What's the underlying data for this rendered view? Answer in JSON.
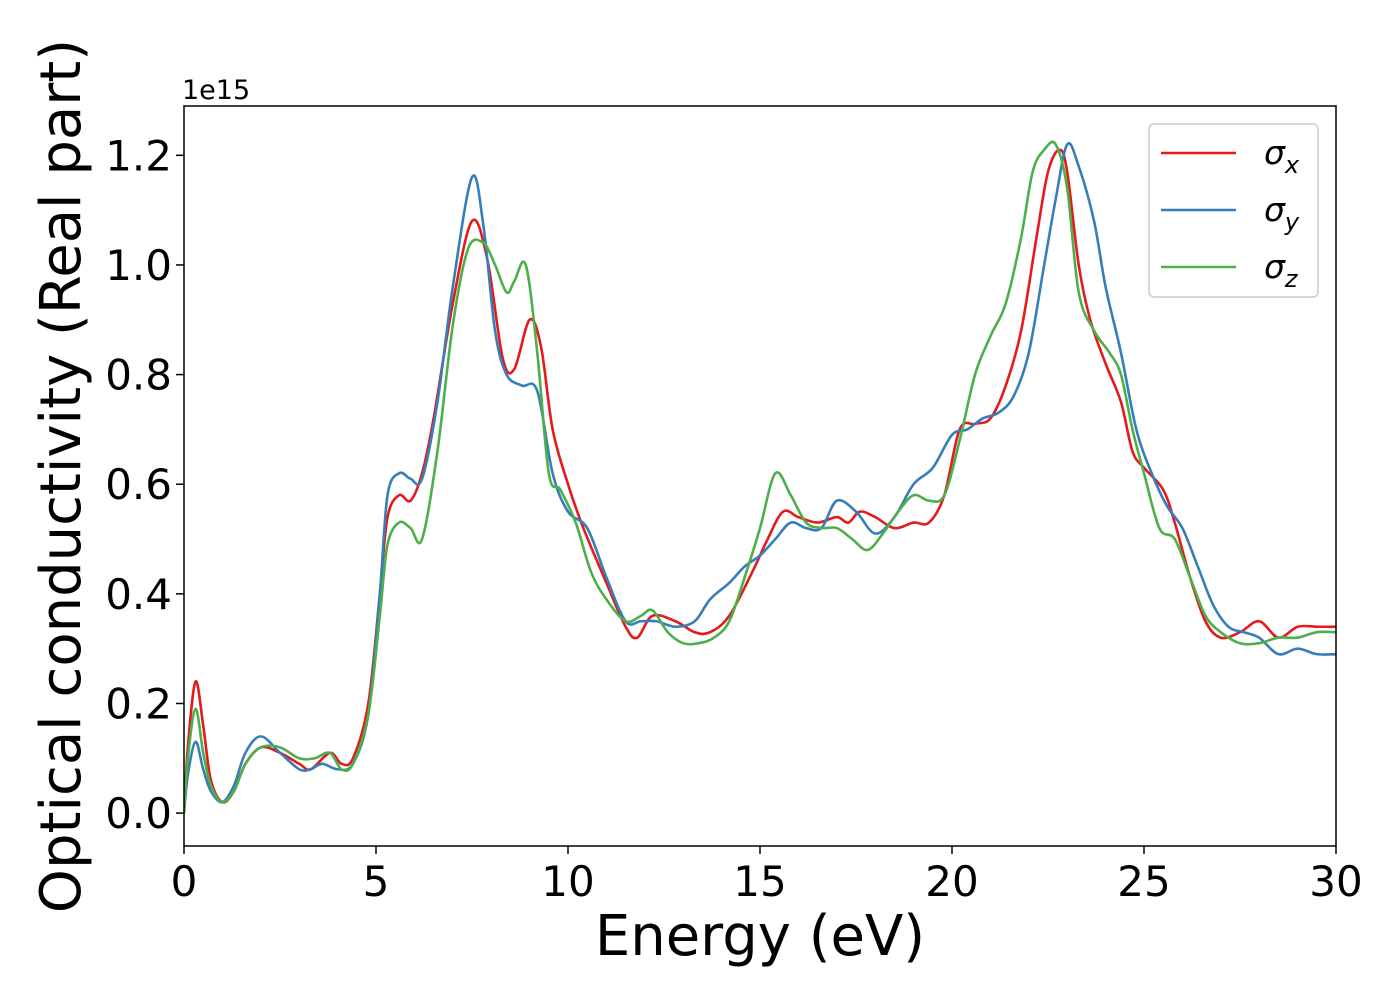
{
  "chart_data": {
    "type": "line",
    "xlabel": "Energy (eV)",
    "ylabel": "Optical conductivity (Real part)",
    "y_offset_label": "1e15",
    "xlim": [
      0,
      30
    ],
    "ylim": [
      -0.06,
      1.29
    ],
    "x_ticks": [
      0,
      5,
      10,
      15,
      20,
      25,
      30
    ],
    "x_tick_labels": [
      "0",
      "5",
      "10",
      "15",
      "20",
      "25",
      "30"
    ],
    "y_ticks": [
      0.0,
      0.2,
      0.4,
      0.6,
      0.8,
      1.0,
      1.2
    ],
    "y_tick_labels": [
      "0.0",
      "0.2",
      "0.4",
      "0.6",
      "0.8",
      "1.0",
      "1.2"
    ],
    "grid": false,
    "legend_position": "top-right",
    "series": [
      {
        "name": "σx",
        "legend_main": "σ",
        "legend_sub": "x",
        "color": "#e41a1c",
        "x": [
          0,
          0.1,
          0.3,
          0.5,
          0.7,
          1.0,
          1.3,
          1.6,
          2.0,
          2.5,
          3.0,
          3.3,
          3.8,
          4.1,
          4.4,
          4.8,
          5.1,
          5.3,
          5.6,
          5.9,
          6.2,
          6.5,
          7.0,
          7.5,
          7.9,
          8.3,
          8.6,
          9.0,
          9.3,
          9.6,
          10.0,
          10.4,
          11.0,
          11.5,
          11.8,
          12.2,
          12.8,
          13.3,
          13.7,
          14.2,
          14.8,
          15.2,
          15.6,
          16.0,
          16.5,
          17.0,
          17.3,
          17.6,
          18.0,
          18.5,
          19.0,
          19.4,
          19.8,
          20.2,
          20.6,
          21.0,
          21.4,
          21.8,
          22.2,
          22.5,
          22.8,
          23.0,
          23.3,
          23.6,
          24.0,
          24.4,
          24.7,
          25.0,
          25.5,
          25.8,
          26.2,
          26.6,
          27.0,
          27.5,
          28.0,
          28.5,
          29.0,
          29.5,
          30.0
        ],
        "values": [
          0.0,
          0.12,
          0.24,
          0.16,
          0.06,
          0.02,
          0.04,
          0.09,
          0.12,
          0.11,
          0.09,
          0.08,
          0.11,
          0.09,
          0.1,
          0.2,
          0.4,
          0.54,
          0.58,
          0.57,
          0.62,
          0.72,
          0.93,
          1.08,
          1.01,
          0.83,
          0.81,
          0.9,
          0.85,
          0.7,
          0.6,
          0.52,
          0.42,
          0.34,
          0.32,
          0.36,
          0.35,
          0.33,
          0.33,
          0.36,
          0.44,
          0.5,
          0.55,
          0.54,
          0.53,
          0.54,
          0.53,
          0.55,
          0.54,
          0.52,
          0.53,
          0.53,
          0.58,
          0.7,
          0.71,
          0.72,
          0.78,
          0.88,
          1.05,
          1.17,
          1.21,
          1.17,
          1.0,
          0.9,
          0.82,
          0.75,
          0.66,
          0.63,
          0.59,
          0.53,
          0.43,
          0.35,
          0.32,
          0.33,
          0.35,
          0.32,
          0.34,
          0.34,
          0.34
        ]
      },
      {
        "name": "σy",
        "legend_main": "σ",
        "legend_sub": "y",
        "color": "#377eb8",
        "x": [
          0,
          0.1,
          0.3,
          0.5,
          0.7,
          1.0,
          1.3,
          1.6,
          2.0,
          2.5,
          3.0,
          3.3,
          3.6,
          4.0,
          4.4,
          4.8,
          5.1,
          5.3,
          5.6,
          5.9,
          6.2,
          6.6,
          7.0,
          7.5,
          7.8,
          8.1,
          8.4,
          8.8,
          9.2,
          9.6,
          10.0,
          10.5,
          11.0,
          11.5,
          11.9,
          12.3,
          12.8,
          13.3,
          13.7,
          14.2,
          14.6,
          15.0,
          15.4,
          15.8,
          16.2,
          16.6,
          17.0,
          17.5,
          18.0,
          18.5,
          19.0,
          19.5,
          20.0,
          20.4,
          20.8,
          21.2,
          21.6,
          22.0,
          22.4,
          22.7,
          23.0,
          23.3,
          23.7,
          24.0,
          24.4,
          24.8,
          25.2,
          25.6,
          26.0,
          26.4,
          26.8,
          27.2,
          27.6,
          28.0,
          28.5,
          29.0,
          29.5,
          30.0
        ],
        "values": [
          0.0,
          0.07,
          0.13,
          0.08,
          0.04,
          0.02,
          0.05,
          0.11,
          0.14,
          0.11,
          0.08,
          0.08,
          0.09,
          0.08,
          0.09,
          0.18,
          0.4,
          0.58,
          0.62,
          0.61,
          0.61,
          0.75,
          0.96,
          1.16,
          1.07,
          0.88,
          0.8,
          0.78,
          0.77,
          0.62,
          0.55,
          0.52,
          0.43,
          0.35,
          0.35,
          0.35,
          0.34,
          0.35,
          0.39,
          0.42,
          0.45,
          0.47,
          0.5,
          0.53,
          0.52,
          0.52,
          0.57,
          0.55,
          0.51,
          0.54,
          0.6,
          0.63,
          0.69,
          0.7,
          0.72,
          0.73,
          0.76,
          0.84,
          1.0,
          1.12,
          1.22,
          1.18,
          1.08,
          0.96,
          0.84,
          0.7,
          0.62,
          0.56,
          0.52,
          0.45,
          0.38,
          0.34,
          0.33,
          0.32,
          0.29,
          0.3,
          0.29,
          0.29
        ]
      },
      {
        "name": "σz",
        "legend_main": "σ",
        "legend_sub": "z",
        "color": "#4daf4a",
        "x": [
          0,
          0.1,
          0.3,
          0.5,
          0.7,
          1.0,
          1.3,
          1.6,
          2.0,
          2.5,
          3.0,
          3.4,
          3.8,
          4.1,
          4.4,
          4.8,
          5.1,
          5.3,
          5.6,
          5.9,
          6.2,
          6.6,
          7.0,
          7.4,
          7.8,
          8.1,
          8.4,
          8.6,
          8.9,
          9.2,
          9.5,
          9.8,
          10.2,
          10.6,
          11.0,
          11.5,
          11.9,
          12.2,
          12.6,
          13.0,
          13.4,
          13.8,
          14.2,
          14.6,
          15.0,
          15.4,
          15.8,
          16.2,
          16.6,
          17.0,
          17.4,
          17.8,
          18.2,
          18.6,
          19.0,
          19.4,
          19.8,
          20.2,
          20.6,
          21.0,
          21.4,
          21.8,
          22.1,
          22.4,
          22.7,
          23.0,
          23.3,
          23.7,
          24.1,
          24.4,
          24.7,
          25.0,
          25.4,
          25.8,
          26.2,
          26.6,
          27.0,
          27.5,
          28.0,
          28.5,
          29.0,
          29.5,
          30.0
        ],
        "values": [
          0.0,
          0.1,
          0.19,
          0.11,
          0.05,
          0.02,
          0.04,
          0.09,
          0.12,
          0.12,
          0.1,
          0.1,
          0.11,
          0.08,
          0.09,
          0.18,
          0.36,
          0.49,
          0.53,
          0.52,
          0.5,
          0.66,
          0.89,
          1.03,
          1.04,
          1.0,
          0.95,
          0.97,
          1.0,
          0.84,
          0.62,
          0.59,
          0.53,
          0.44,
          0.39,
          0.35,
          0.36,
          0.37,
          0.33,
          0.31,
          0.31,
          0.32,
          0.35,
          0.43,
          0.52,
          0.62,
          0.58,
          0.53,
          0.52,
          0.52,
          0.5,
          0.48,
          0.51,
          0.55,
          0.58,
          0.57,
          0.58,
          0.68,
          0.8,
          0.87,
          0.93,
          1.05,
          1.17,
          1.21,
          1.22,
          1.14,
          0.95,
          0.88,
          0.84,
          0.8,
          0.7,
          0.62,
          0.52,
          0.5,
          0.43,
          0.36,
          0.33,
          0.31,
          0.31,
          0.32,
          0.32,
          0.33,
          0.33
        ]
      }
    ]
  }
}
